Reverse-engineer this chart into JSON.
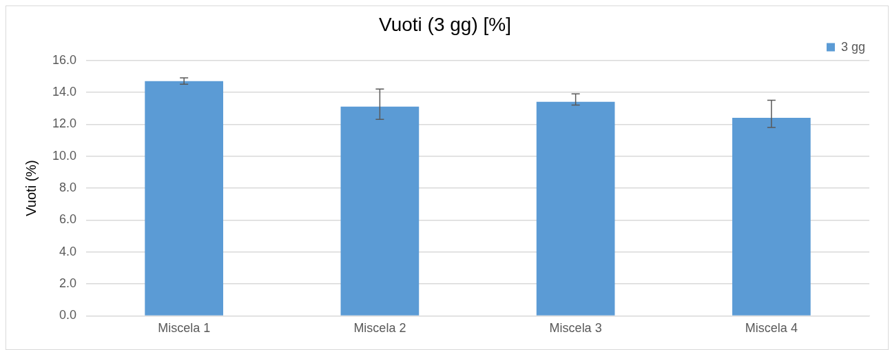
{
  "chart_data": {
    "type": "bar",
    "title": "Vuoti (3 gg) [%]",
    "ylabel": "Vuoti (%)",
    "categories": [
      "Miscela 1",
      "Miscela 2",
      "Miscela 3",
      "Miscela 4"
    ],
    "series": [
      {
        "name": "3 gg",
        "color": "#5b9bd5",
        "values": [
          14.7,
          13.1,
          13.4,
          12.4
        ],
        "errors": [
          [
            14.5,
            14.9
          ],
          [
            12.3,
            14.2
          ],
          [
            13.2,
            13.9
          ],
          [
            11.8,
            13.5
          ]
        ]
      }
    ],
    "ylim": [
      0,
      16
    ],
    "yticks": [
      {
        "value": 0,
        "label": "0.0"
      },
      {
        "value": 2,
        "label": "2.0"
      },
      {
        "value": 4,
        "label": "4.0"
      },
      {
        "value": 6,
        "label": "6.0"
      },
      {
        "value": 8,
        "label": "8.0"
      },
      {
        "value": 10,
        "label": "10.0"
      },
      {
        "value": 12,
        "label": "12.0"
      },
      {
        "value": 14,
        "label": "14.0"
      },
      {
        "value": 16,
        "label": "16.0"
      }
    ],
    "grid": "y",
    "legend": "top right"
  }
}
